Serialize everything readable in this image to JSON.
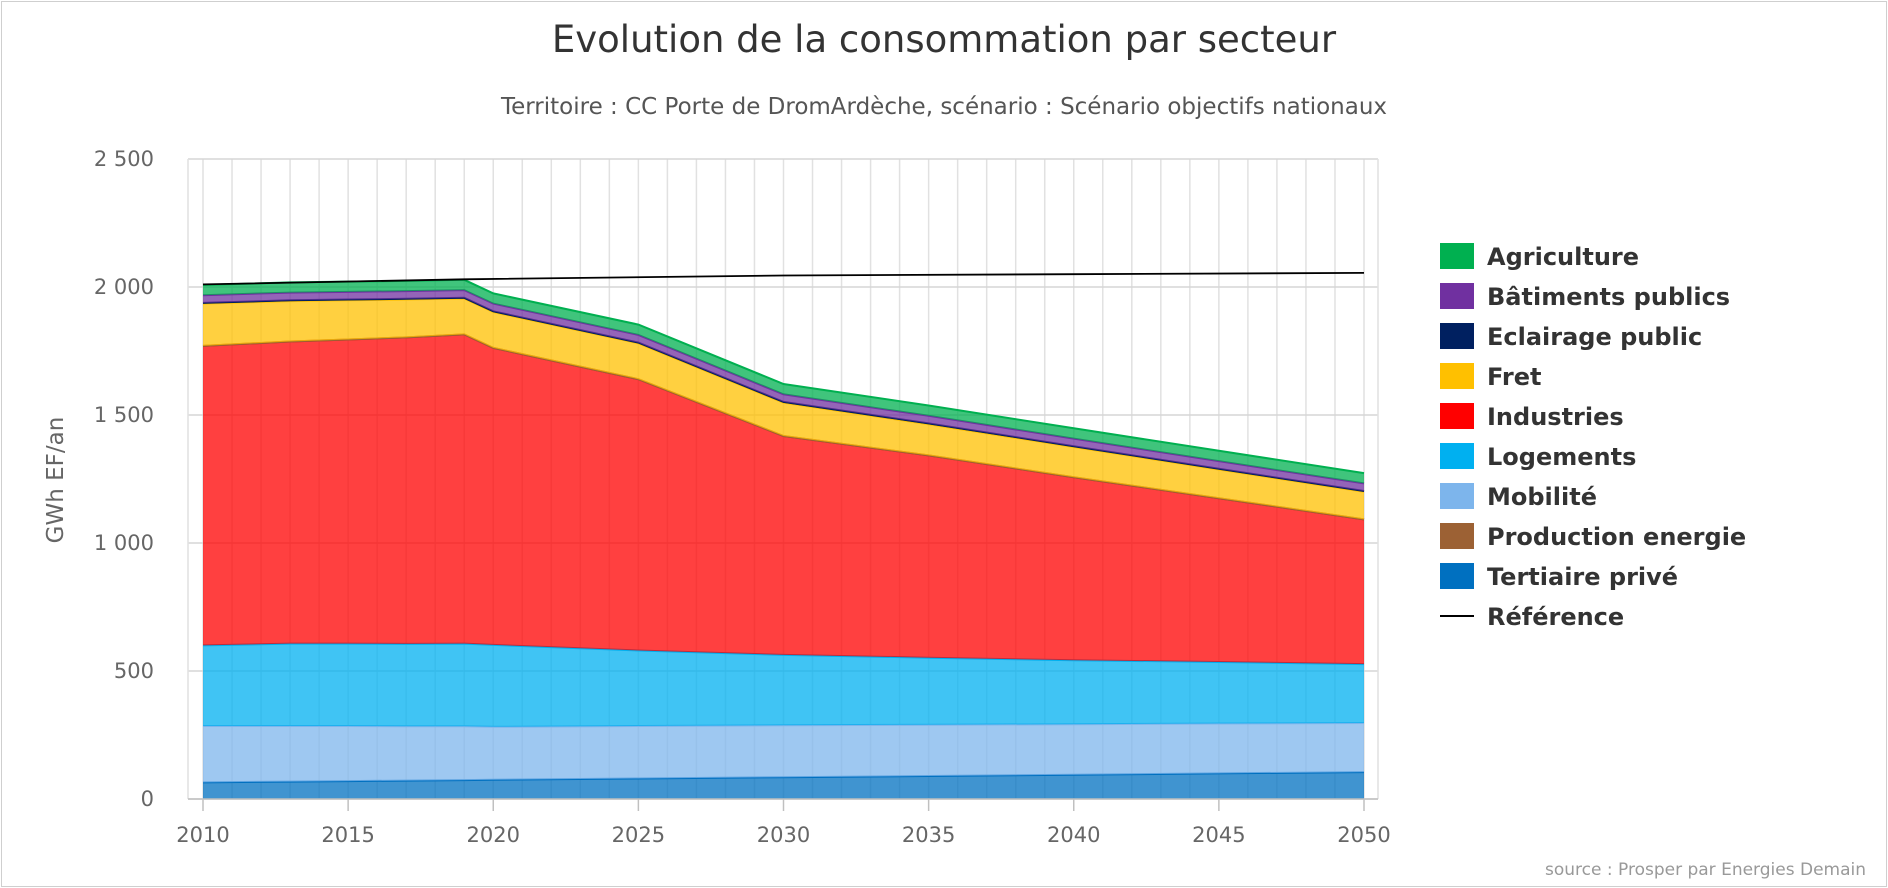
{
  "chart_data": {
    "type": "area",
    "stacked": true,
    "title": "Evolution de la consommation par secteur",
    "subtitle": "Territoire : CC Porte de DromArdèche, scénario : Scénario objectifs nationaux",
    "ylabel": "GWh EF/an",
    "xlabel": "",
    "xlim": [
      2010,
      2050
    ],
    "ylim": [
      0,
      2500
    ],
    "x_ticks": [
      "2010",
      "2015",
      "2020",
      "2025",
      "2030",
      "2035",
      "2040",
      "2045",
      "2050"
    ],
    "y_ticks": [
      "0",
      "500",
      "1 000",
      "1 500",
      "2 000",
      "2 500"
    ],
    "grid": true,
    "legend_position": "right",
    "credit": "source : Prosper par Energies Demain",
    "x": [
      2010,
      2013,
      2015,
      2017,
      2019,
      2020,
      2025,
      2030,
      2035,
      2040,
      2045,
      2050
    ],
    "series": [
      {
        "name": "Tertiaire privé",
        "color": "#0070C0",
        "values": [
          65,
          68,
          70,
          72,
          74,
          75,
          80,
          85,
          90,
          95,
          100,
          105
        ]
      },
      {
        "name": "Mobilité",
        "color": "#7DB5EC",
        "values": [
          220,
          217,
          215,
          212,
          210,
          207,
          205,
          203,
          200,
          197,
          195,
          192
        ]
      },
      {
        "name": "Logements",
        "color": "#00B0F0",
        "values": [
          315,
          322,
          322,
          322,
          323,
          320,
          295,
          275,
          262,
          250,
          240,
          230
        ]
      },
      {
        "name": "Industries",
        "color": "#FF0000",
        "values": [
          1170,
          1180,
          1188,
          1197,
          1208,
          1160,
          1060,
          855,
          790,
          715,
          640,
          565
        ]
      },
      {
        "name": "Production energie",
        "color": "#9C6134",
        "values": [
          0,
          0,
          0,
          0,
          0,
          0,
          0,
          0,
          0,
          0,
          0,
          0
        ]
      },
      {
        "name": "Fret",
        "color": "#FFC000",
        "values": [
          165,
          158,
          153,
          148,
          140,
          140,
          140,
          130,
          122,
          118,
          112,
          108
        ]
      },
      {
        "name": "Eclairage public",
        "color": "#002060",
        "values": [
          3,
          3,
          3,
          3,
          3,
          3,
          3,
          3,
          3,
          3,
          3,
          3
        ]
      },
      {
        "name": "Bâtiments publics",
        "color": "#7030A0",
        "values": [
          30,
          30,
          30,
          30,
          30,
          30,
          30,
          30,
          30,
          30,
          30,
          30
        ]
      },
      {
        "name": "Agriculture",
        "color": "#00B050",
        "values": [
          40,
          40,
          40,
          40,
          40,
          40,
          40,
          40,
          40,
          40,
          40,
          40
        ]
      }
    ],
    "reference": {
      "name": "Référence",
      "color": "#000000",
      "x": [
        2010,
        2019,
        2030,
        2040,
        2050
      ],
      "values": [
        2010,
        2030,
        2045,
        2050,
        2055
      ]
    },
    "legend": [
      {
        "name": "Agriculture",
        "color": "#00B050",
        "type": "box"
      },
      {
        "name": "Bâtiments publics",
        "color": "#7030A0",
        "type": "box"
      },
      {
        "name": "Eclairage public",
        "color": "#002060",
        "type": "box"
      },
      {
        "name": "Fret",
        "color": "#FFC000",
        "type": "box"
      },
      {
        "name": "Industries",
        "color": "#FF0000",
        "type": "box"
      },
      {
        "name": "Logements",
        "color": "#00B0F0",
        "type": "box"
      },
      {
        "name": "Mobilité",
        "color": "#7DB5EC",
        "type": "box"
      },
      {
        "name": "Production energie",
        "color": "#9C6134",
        "type": "box"
      },
      {
        "name": "Tertiaire privé",
        "color": "#0070C0",
        "type": "box"
      },
      {
        "name": "Référence",
        "color": "#000000",
        "type": "line"
      }
    ]
  }
}
